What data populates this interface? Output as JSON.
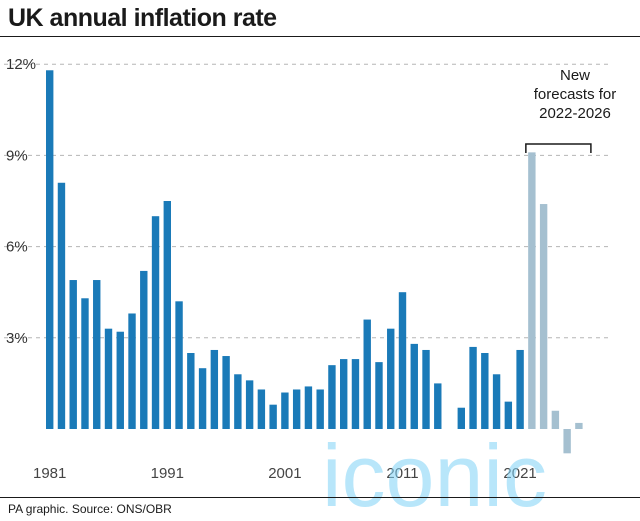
{
  "title": "UK annual inflation rate",
  "source": "PA graphic. Source: ONS/OBR",
  "watermark": "iconic",
  "colors": {
    "actual": "#1a7ab8",
    "forecast": "#a5c0d0",
    "grid": "#b5b5b5"
  },
  "chart_data": {
    "type": "bar",
    "categories": [
      "1981",
      "1982",
      "1983",
      "1984",
      "1985",
      "1986",
      "1987",
      "1988",
      "1989",
      "1990",
      "1991",
      "1992",
      "1993",
      "1994",
      "1995",
      "1996",
      "1997",
      "1998",
      "1999",
      "2000",
      "2001",
      "2002",
      "2003",
      "2004",
      "2005",
      "2006",
      "2007",
      "2008",
      "2009",
      "2010",
      "2011",
      "2012",
      "2013",
      "2014",
      "2015",
      "2016",
      "2017",
      "2018",
      "2019",
      "2020",
      "2021",
      "2022",
      "2023",
      "2024",
      "2025",
      "2026"
    ],
    "series": [
      {
        "values": [
          11.8,
          8.1,
          4.9,
          4.3,
          4.9,
          3.3,
          3.2,
          3.8,
          5.2,
          7.0,
          7.5,
          4.2,
          2.5,
          2.0,
          2.6,
          2.4,
          1.8,
          1.6,
          1.3,
          0.8,
          1.2,
          1.3,
          1.4,
          1.3,
          2.1,
          2.3,
          2.3,
          3.6,
          2.2,
          3.3,
          4.5,
          2.8,
          2.6,
          1.5,
          0.0,
          0.7,
          2.7,
          2.5,
          1.8,
          0.9,
          2.6,
          null,
          null,
          null,
          null,
          null
        ]
      },
      {
        "values": [
          null,
          null,
          null,
          null,
          null,
          null,
          null,
          null,
          null,
          null,
          null,
          null,
          null,
          null,
          null,
          null,
          null,
          null,
          null,
          null,
          null,
          null,
          null,
          null,
          null,
          null,
          null,
          null,
          null,
          null,
          null,
          null,
          null,
          null,
          null,
          null,
          null,
          null,
          null,
          null,
          null,
          9.1,
          7.4,
          0.6,
          -0.8,
          0.2
        ]
      }
    ],
    "x_tick_labels": [
      "1981",
      "1991",
      "2001",
      "2011",
      "2021"
    ],
    "y_tick_labels": [
      "12%",
      "9%",
      "6%",
      "3%"
    ],
    "y_ticks": [
      12,
      9,
      6,
      3
    ],
    "ylim": [
      -1,
      12.5
    ],
    "grid": true,
    "annotation": {
      "lines": [
        "New",
        "forecasts for",
        "2022-2026"
      ]
    }
  }
}
